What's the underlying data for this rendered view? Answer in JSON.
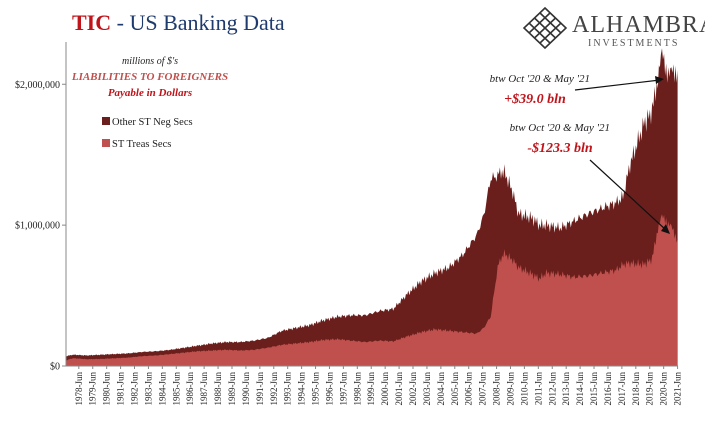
{
  "header": {
    "title_red": "TIC",
    "title_rest": " - US Banking Data"
  },
  "brand": {
    "name": "ALHAMBRA",
    "sub": "INVESTMENTS",
    "logo_icon": "diamond-lattice-icon"
  },
  "chart_data": {
    "type": "area",
    "stacked": true,
    "annotation_units": "millions of $'s",
    "annotation_title": "LIABILITIES TO FOREIGNERS",
    "annotation_subtitle": "Payable  in Dollars",
    "ylim": [
      0,
      2300000
    ],
    "y_ticks": [
      0,
      1000000,
      2000000
    ],
    "y_tick_labels": [
      "$0",
      "$1,000,000",
      "$2,000,000"
    ],
    "x_tick_labels": [
      "1978-Jun",
      "1979-Jun",
      "1980-Jun",
      "1981-Jun",
      "1982-Jun",
      "1983-Jun",
      "1984-Jun",
      "1985-Jun",
      "1986-Jun",
      "1987-Jun",
      "1988-Jun",
      "1989-Jun",
      "1990-Jun",
      "1991-Jun",
      "1992-Jun",
      "1993-Jun",
      "1994-Jun",
      "1995-Jun",
      "1996-Jun",
      "1997-Jun",
      "1998-Jun",
      "1999-Jun",
      "2000-Jun",
      "2001-Jun",
      "2002-Jun",
      "2003-Jun",
      "2004-Jun",
      "2005-Jun",
      "2006-Jun",
      "2007-Jun",
      "2008-Jun",
      "2009-Jun",
      "2010-Jun",
      "2011-Jun",
      "2012-Jun",
      "2013-Jun",
      "2014-Jun",
      "2015-Jun",
      "2016-Jun",
      "2017-Jun",
      "2018-Jun",
      "2019-Jun",
      "2020-Jun",
      "2021-Jun"
    ],
    "x_start_year": 1977.5,
    "x_end_year": 2021.45,
    "legend": [
      {
        "name": "Other ST Neg Secs",
        "color": "#6b1f1c"
      },
      {
        "name": "ST Treas Secs",
        "color": "#c0504d"
      }
    ],
    "series": [
      {
        "name": "ST Treas Secs",
        "color": "#c0504d",
        "points": [
          [
            1977.5,
            40000
          ],
          [
            1978.0,
            55000
          ],
          [
            1979.0,
            48000
          ],
          [
            1980.0,
            50000
          ],
          [
            1981.0,
            55000
          ],
          [
            1982.0,
            60000
          ],
          [
            1983.0,
            70000
          ],
          [
            1984.0,
            75000
          ],
          [
            1985.0,
            85000
          ],
          [
            1986.0,
            95000
          ],
          [
            1987.0,
            105000
          ],
          [
            1988.0,
            110000
          ],
          [
            1989.0,
            115000
          ],
          [
            1990.0,
            110000
          ],
          [
            1991.0,
            115000
          ],
          [
            1992.0,
            130000
          ],
          [
            1993.0,
            150000
          ],
          [
            1994.0,
            160000
          ],
          [
            1995.0,
            170000
          ],
          [
            1996.0,
            185000
          ],
          [
            1997.0,
            190000
          ],
          [
            1998.0,
            180000
          ],
          [
            1999.0,
            170000
          ],
          [
            2000.0,
            180000
          ],
          [
            2001.0,
            175000
          ],
          [
            2002.0,
            210000
          ],
          [
            2003.0,
            240000
          ],
          [
            2004.0,
            260000
          ],
          [
            2005.0,
            250000
          ],
          [
            2006.0,
            240000
          ],
          [
            2007.0,
            230000
          ],
          [
            2007.5,
            270000
          ],
          [
            2008.0,
            350000
          ],
          [
            2008.5,
            700000
          ],
          [
            2008.9,
            800000
          ],
          [
            2009.5,
            760000
          ],
          [
            2010.0,
            700000
          ],
          [
            2011.0,
            650000
          ],
          [
            2011.5,
            620000
          ],
          [
            2012.0,
            660000
          ],
          [
            2013.0,
            650000
          ],
          [
            2014.0,
            630000
          ],
          [
            2015.0,
            640000
          ],
          [
            2016.0,
            660000
          ],
          [
            2017.0,
            680000
          ],
          [
            2017.5,
            720000
          ],
          [
            2018.0,
            730000
          ],
          [
            2019.0,
            720000
          ],
          [
            2019.6,
            760000
          ],
          [
            2020.0,
            980000
          ],
          [
            2020.3,
            1050000
          ],
          [
            2020.6,
            1040000
          ],
          [
            2020.9,
            1000000
          ],
          [
            2021.2,
            920000
          ],
          [
            2021.42,
            900000
          ]
        ]
      },
      {
        "name": "Other ST Neg Secs",
        "color": "#6b1f1c",
        "points": [
          [
            1977.5,
            30000
          ],
          [
            1978.0,
            25000
          ],
          [
            1979.0,
            27000
          ],
          [
            1980.0,
            30000
          ],
          [
            1981.0,
            30000
          ],
          [
            1982.0,
            30000
          ],
          [
            1983.0,
            30000
          ],
          [
            1984.0,
            30000
          ],
          [
            1985.0,
            30000
          ],
          [
            1986.0,
            35000
          ],
          [
            1987.0,
            40000
          ],
          [
            1988.0,
            50000
          ],
          [
            1989.0,
            55000
          ],
          [
            1990.0,
            60000
          ],
          [
            1991.0,
            65000
          ],
          [
            1992.0,
            70000
          ],
          [
            1993.0,
            100000
          ],
          [
            1994.0,
            110000
          ],
          [
            1995.0,
            120000
          ],
          [
            1996.0,
            140000
          ],
          [
            1997.0,
            160000
          ],
          [
            1998.0,
            180000
          ],
          [
            1999.0,
            190000
          ],
          [
            2000.0,
            210000
          ],
          [
            2001.0,
            230000
          ],
          [
            2002.0,
            300000
          ],
          [
            2003.0,
            360000
          ],
          [
            2004.0,
            400000
          ],
          [
            2005.0,
            450000
          ],
          [
            2006.0,
            550000
          ],
          [
            2007.0,
            700000
          ],
          [
            2007.5,
            800000
          ],
          [
            2008.0,
            980000
          ],
          [
            2008.5,
            650000
          ],
          [
            2008.9,
            590000
          ],
          [
            2009.5,
            500000
          ],
          [
            2010.0,
            380000
          ],
          [
            2011.0,
            400000
          ],
          [
            2011.5,
            380000
          ],
          [
            2012.0,
            340000
          ],
          [
            2013.0,
            330000
          ],
          [
            2014.0,
            400000
          ],
          [
            2015.0,
            440000
          ],
          [
            2016.0,
            460000
          ],
          [
            2017.0,
            480000
          ],
          [
            2017.5,
            480000
          ],
          [
            2018.0,
            700000
          ],
          [
            2019.0,
            1000000
          ],
          [
            2019.6,
            1050000
          ],
          [
            2020.0,
            1070000
          ],
          [
            2020.3,
            1150000
          ],
          [
            2020.6,
            1080000
          ],
          [
            2020.9,
            1090000
          ],
          [
            2021.2,
            1130000
          ],
          [
            2021.42,
            1200000
          ]
        ]
      }
    ],
    "annotations": [
      {
        "pre": "btw Oct '20 & May  '21",
        "value": "+$39.0 bln"
      },
      {
        "pre": "btw Oct '20 & May  '21",
        "value": "-$123.3 bln"
      }
    ]
  }
}
